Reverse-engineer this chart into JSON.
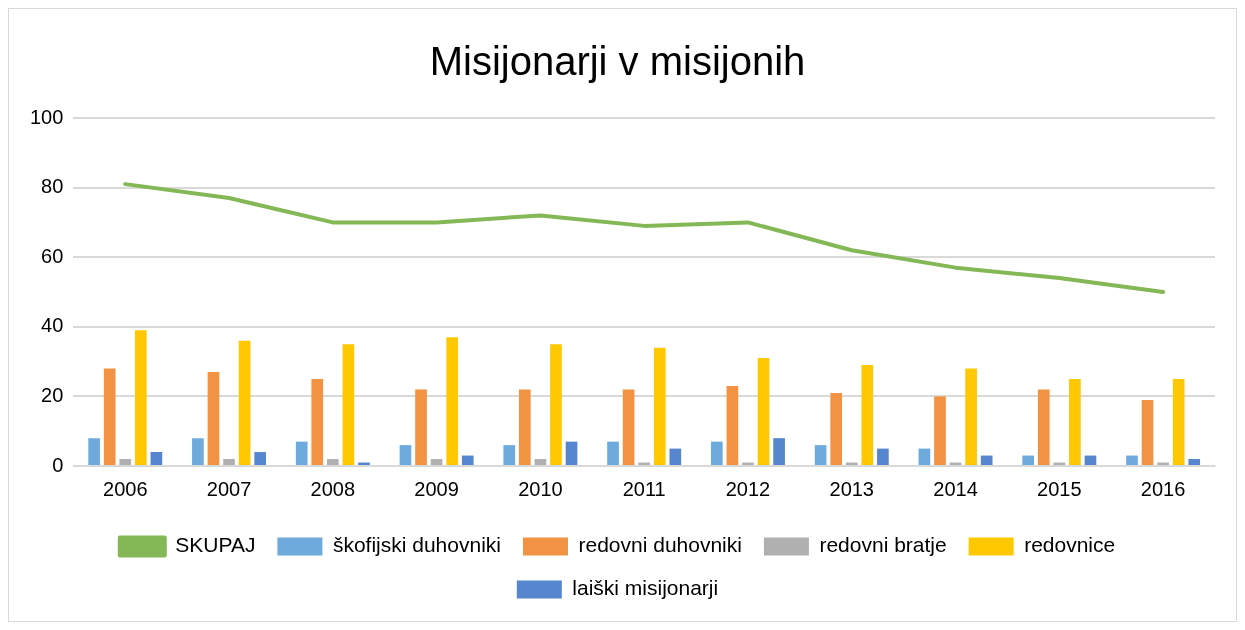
{
  "chart_data": {
    "type": "bar",
    "title": "Misijonarji v misijonih",
    "categories": [
      "2006",
      "2007",
      "2008",
      "2009",
      "2010",
      "2011",
      "2012",
      "2013",
      "2014",
      "2015",
      "2016"
    ],
    "series": [
      {
        "name": "škofijski duhovniki",
        "color": "#6faadc",
        "values": [
          8,
          8,
          7,
          6,
          6,
          7,
          7,
          6,
          5,
          3,
          3
        ]
      },
      {
        "name": "redovni duhovniki",
        "color": "#f19343",
        "values": [
          28,
          27,
          25,
          22,
          22,
          22,
          23,
          21,
          20,
          22,
          19
        ]
      },
      {
        "name": "redovni bratje",
        "color": "#b0b0b0",
        "values": [
          2,
          2,
          2,
          2,
          2,
          1,
          1,
          1,
          1,
          1,
          1
        ]
      },
      {
        "name": "redovnice",
        "color": "#ffc800",
        "values": [
          39,
          36,
          35,
          37,
          35,
          34,
          31,
          29,
          28,
          25,
          25
        ]
      },
      {
        "name": "laiški misijonarji",
        "color": "#5686d0",
        "values": [
          4,
          4,
          1,
          3,
          7,
          5,
          8,
          5,
          3,
          3,
          2
        ]
      },
      {
        "name": "SKUPAJ",
        "type": "line",
        "color": "#84b856",
        "values": [
          81,
          77,
          70,
          70,
          72,
          69,
          70,
          62,
          57,
          54,
          50
        ]
      }
    ],
    "ylim": [
      0,
      100
    ],
    "yticks": [
      0,
      20,
      40,
      60,
      80,
      100
    ],
    "grid": "y",
    "legend": "bottom",
    "marker": "none"
  }
}
